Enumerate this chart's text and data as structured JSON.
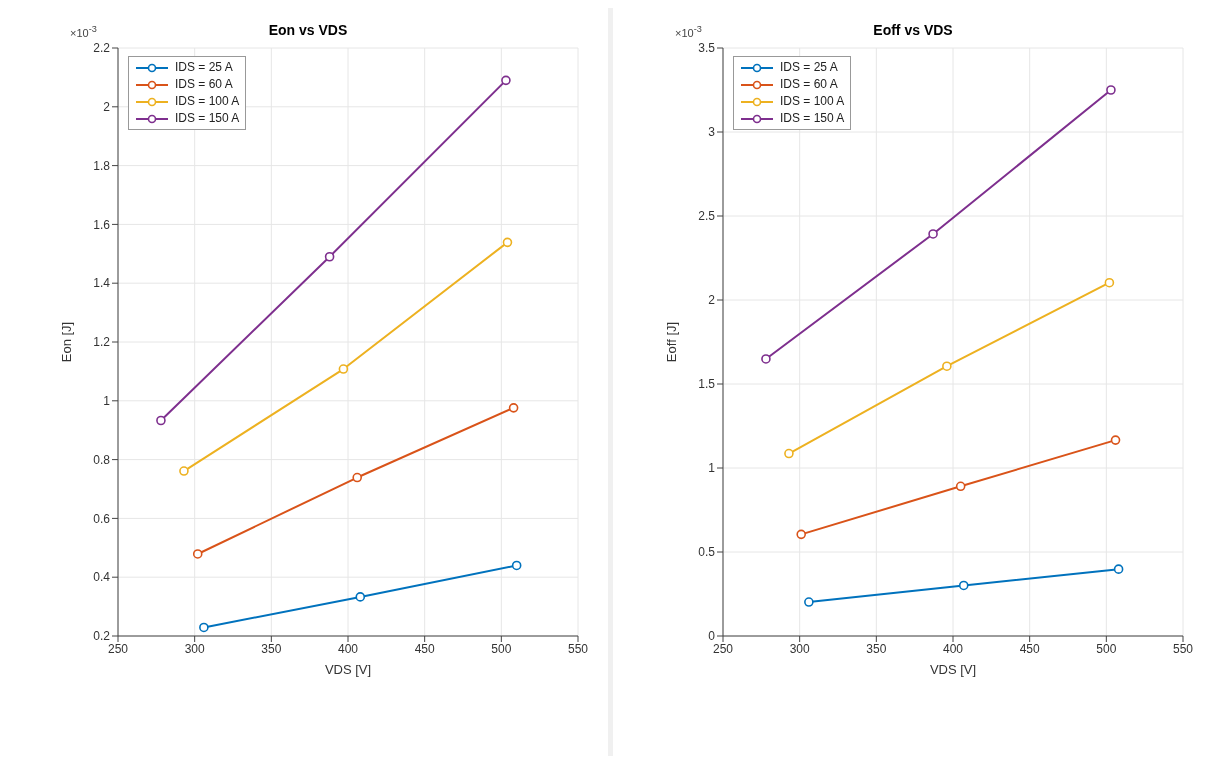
{
  "chart_data": [
    {
      "type": "line",
      "title": "Eon vs VDS",
      "xlabel": "VDS [V]",
      "ylabel": "Eon [J]",
      "annotations": [
        "×10$^{-3}$"
      ],
      "xlim": [
        250,
        550
      ],
      "xticks": [
        250,
        300,
        350,
        400,
        450,
        500,
        550
      ],
      "ylim": [
        0.2,
        2.2
      ],
      "yticks": [
        0.2,
        0.4,
        0.6,
        0.8,
        1,
        1.2,
        1.4,
        1.6,
        1.8,
        2,
        2.2
      ],
      "grid": true,
      "legend": "top left",
      "marker": "circle",
      "line_style": "solid",
      "series": [
        {
          "name": "IDS = 25 A",
          "color": "#0072bd",
          "x": [
            306,
            408,
            510
          ],
          "values": [
            0.229,
            0.333,
            0.44
          ]
        },
        {
          "name": "IDS = 60 A",
          "color": "#d95319",
          "x": [
            302,
            406,
            508
          ],
          "values": [
            0.479,
            0.739,
            0.976
          ]
        },
        {
          "name": "IDS = 100 A",
          "color": "#edb120",
          "x": [
            293,
            397,
            504
          ],
          "values": [
            0.761,
            1.108,
            1.539
          ]
        },
        {
          "name": "IDS = 150 A",
          "color": "#7e2f8e",
          "x": [
            278,
            388,
            503
          ],
          "values": [
            0.933,
            1.49,
            2.09
          ]
        }
      ]
    },
    {
      "type": "line",
      "title": "Eoff vs VDS",
      "xlabel": "VDS [V]",
      "ylabel": "Eoff [J]",
      "annotations": [
        "×10$^{-3}$"
      ],
      "xlim": [
        250,
        550
      ],
      "xticks": [
        250,
        300,
        350,
        400,
        450,
        500,
        550
      ],
      "ylim": [
        0,
        3.5
      ],
      "yticks": [
        0,
        0.5,
        1,
        1.5,
        2,
        2.5,
        3,
        3.5
      ],
      "grid": true,
      "legend": "top left",
      "marker": "circle",
      "line_style": "solid",
      "series": [
        {
          "name": "IDS = 25 A",
          "color": "#0072bd",
          "x": [
            306,
            407,
            508
          ],
          "values": [
            0.202,
            0.301,
            0.398
          ]
        },
        {
          "name": "IDS = 60 A",
          "color": "#d95319",
          "x": [
            301,
            405,
            506
          ],
          "values": [
            0.605,
            0.891,
            1.166
          ]
        },
        {
          "name": "IDS = 100 A",
          "color": "#edb120",
          "x": [
            293,
            396,
            502
          ],
          "values": [
            1.086,
            1.606,
            2.103
          ]
        },
        {
          "name": "IDS = 150 A",
          "color": "#7e2f8e",
          "x": [
            278,
            387,
            503
          ],
          "values": [
            1.649,
            2.393,
            3.25
          ]
        }
      ]
    }
  ]
}
